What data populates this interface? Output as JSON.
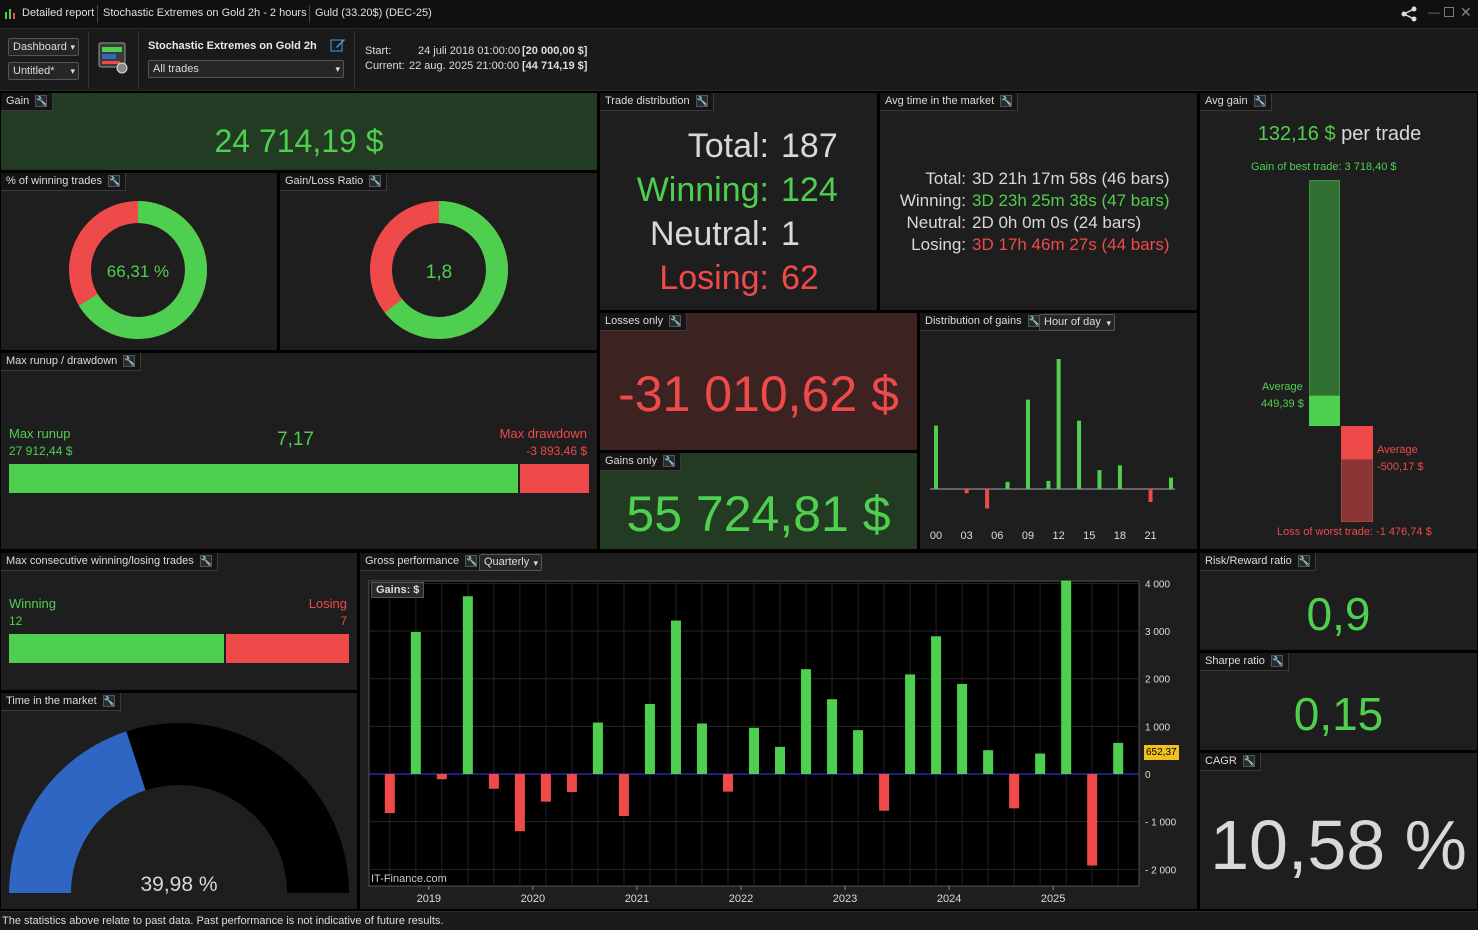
{
  "titlebar": {
    "report_title": "Detailed report",
    "strategy_tab": "Stochastic Extremes on Gold 2h - 2 hours",
    "instrument_tab": "Guld (33.20$) (DEC-25)"
  },
  "toolbar": {
    "view_select": "Dashboard",
    "layout_select": "Untitled*",
    "strategy_name": "Stochastic Extremes on Gold 2h",
    "trades_filter": "All trades",
    "start_label": "Start:",
    "start_value": "24 juli 2018 01:00:00",
    "start_capital": "[20 000,00 $]",
    "current_label": "Current:",
    "current_value": "22 aug. 2025 21:00:00",
    "current_capital": "[44 714,19 $]"
  },
  "gain": {
    "label": "Gain",
    "value": "24 714,19 $"
  },
  "winning_pct": {
    "label": "% of winning trades",
    "value": "66,31 %",
    "fraction": 0.6631
  },
  "gain_loss_ratio": {
    "label": "Gain/Loss Ratio",
    "value": "1,8",
    "fraction": 0.643
  },
  "trade_distribution": {
    "label": "Trade distribution",
    "rows": [
      {
        "key": "Total:",
        "value": "187"
      },
      {
        "key": "Winning:",
        "value": "124"
      },
      {
        "key": "Neutral:",
        "value": "1"
      },
      {
        "key": "Losing:",
        "value": "62"
      }
    ]
  },
  "avg_time": {
    "label": "Avg time in the market",
    "rows": [
      {
        "key": "Total:",
        "value": "3D 21h 17m 58s (46 bars)"
      },
      {
        "key": "Winning:",
        "value": "3D 23h 25m 38s (47 bars)"
      },
      {
        "key": "Neutral:",
        "value": "2D 0h 0m 0s (24 bars)"
      },
      {
        "key": "Losing:",
        "value": "3D 17h 46m 27s (44 bars)"
      }
    ]
  },
  "avg_gain": {
    "label": "Avg gain",
    "value": "132,16 $",
    "suffix": "per trade",
    "best_trade": "Gain of best trade: 3 718,40 $",
    "avg_win_label": "Average",
    "avg_win_value": "449,39 $",
    "avg_loss_label": "Average",
    "avg_loss_value": "-500,17 $",
    "worst_trade": "Loss of worst trade: -1 476,74 $"
  },
  "max_runup": {
    "label": "Max runup / drawdown",
    "runup_label": "Max runup",
    "runup_value": "27 912,44 $",
    "ratio": "7,17",
    "drawdown_label": "Max drawdown",
    "drawdown_value": "-3 893,46 $",
    "runup_fraction": 0.8776
  },
  "losses_only": {
    "label": "Losses only",
    "value": "-31 010,62 $"
  },
  "gains_only": {
    "label": "Gains only",
    "value": "55 724,81 $"
  },
  "dist_gains": {
    "label": "Distribution of gains",
    "mode": "Hour of day",
    "x_ticks": [
      "00",
      "03",
      "06",
      "09",
      "12",
      "15",
      "18",
      "21"
    ]
  },
  "max_consecutive": {
    "label": "Max consecutive winning/losing trades",
    "winning_label": "Winning",
    "winning_value": "12",
    "losing_label": "Losing",
    "losing_value": "7",
    "win_fraction": 0.632
  },
  "time_in_market": {
    "label": "Time in the market",
    "value": "39,98 %",
    "fraction": 0.3998
  },
  "gross_perf": {
    "label": "Gross performance",
    "period": "Quarterly",
    "legend": "Gains: $",
    "watermark": "IT-Finance.com",
    "current_marker": "652,37"
  },
  "risk_reward": {
    "label": "Risk/Reward ratio",
    "value": "0,9"
  },
  "sharpe": {
    "label": "Sharpe ratio",
    "value": "0,15"
  },
  "cagr": {
    "label": "CAGR",
    "value": "10,58 %"
  },
  "footer": {
    "disclaimer": "The statistics above relate to past data. Past performance is not indicative of future results."
  },
  "colors": {
    "green": "#4fcf4f",
    "red": "#ef4a4a",
    "blue": "#2f66c4",
    "gain_bg": "#233a23",
    "loss_bg": "#3d2222"
  },
  "chart_data": [
    {
      "type": "bar",
      "title": "Distribution of gains",
      "categories": [
        "00",
        "01",
        "02",
        "03",
        "04",
        "05",
        "06",
        "07",
        "08",
        "09",
        "10",
        "11",
        "12",
        "13",
        "14",
        "15",
        "16",
        "17",
        "18",
        "19",
        "20",
        "21",
        "22",
        "23"
      ],
      "x_ticks": [
        "00",
        "03",
        "06",
        "09",
        "12",
        "15",
        "18",
        "21"
      ],
      "values": [
        1950,
        0,
        0,
        -130,
        0,
        -600,
        0,
        220,
        0,
        2750,
        0,
        250,
        4000,
        0,
        2100,
        0,
        580,
        0,
        730,
        0,
        0,
        -400,
        0,
        350
      ],
      "ylim": [
        -1000,
        4200
      ],
      "grid": false
    },
    {
      "type": "bar",
      "title": "Gross performance",
      "legend": "Gains: $",
      "x_ticks": [
        "2019",
        "2020",
        "2021",
        "2022",
        "2023",
        "2024",
        "2025"
      ],
      "y_ticks": [
        "4 000",
        "3 000",
        "2 000",
        "1 000",
        "0",
        "- 1 000",
        "- 2 000"
      ],
      "categories": [
        "2018Q3",
        "2018Q4",
        "2019Q1",
        "2019Q2",
        "2019Q3",
        "2019Q4",
        "2020Q1",
        "2020Q2",
        "2020Q3",
        "2020Q4",
        "2021Q1",
        "2021Q2",
        "2021Q3",
        "2021Q4",
        "2022Q1",
        "2022Q2",
        "2022Q3",
        "2022Q4",
        "2023Q1",
        "2023Q2",
        "2023Q3",
        "2023Q4",
        "2024Q1",
        "2024Q2",
        "2024Q3",
        "2024Q4",
        "2025Q1",
        "2025Q2",
        "2025Q3"
      ],
      "values": [
        -820,
        2980,
        -110,
        3730,
        -310,
        -1200,
        -580,
        -380,
        1080,
        -880,
        1470,
        3220,
        1060,
        -370,
        970,
        570,
        2200,
        1570,
        920,
        -770,
        2090,
        2890,
        1890,
        500,
        -720,
        430,
        4060,
        -1920,
        652.37
      ],
      "ylim": [
        -2350,
        4050
      ],
      "grid": true
    }
  ]
}
